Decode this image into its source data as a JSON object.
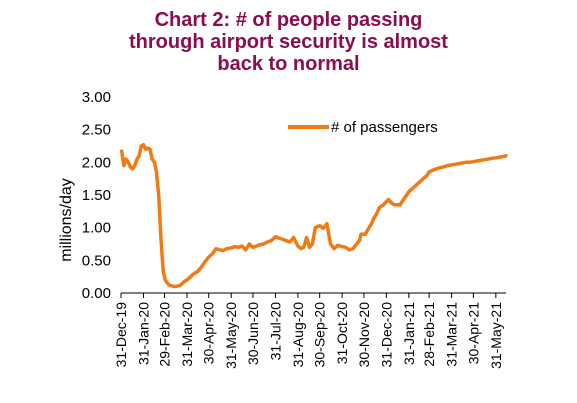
{
  "chart_data": {
    "type": "line",
    "title_lines": [
      "Chart 2: # of people passing",
      "through airport security is almost",
      "back to normal"
    ],
    "title_color": "#8B0D4F",
    "ylabel": "millions/day",
    "xlabel": "",
    "ylim": [
      0,
      3
    ],
    "yticks": [
      "0.00",
      "0.50",
      "1.00",
      "1.50",
      "2.00",
      "2.50",
      "3.00"
    ],
    "ytick_values": [
      0,
      0.5,
      1,
      1.5,
      2,
      2.5,
      3
    ],
    "xlim": [
      "2019-12-31",
      "2021-06-14"
    ],
    "xticks": [
      "31-Dec-19",
      "31-Jan-20",
      "29-Feb-20",
      "31-Mar-20",
      "30-Apr-20",
      "31-May-20",
      "30-Jun-20",
      "31-Jul-20",
      "31-Aug-20",
      "30-Sep-20",
      "31-Oct-20",
      "30-Nov-20",
      "31-Dec-20",
      "31-Jan-21",
      "28-Feb-21",
      "31-Mar-21",
      "30-Apr-21",
      "31-May-21"
    ],
    "xtick_dates": [
      "2019-12-31",
      "2020-01-31",
      "2020-02-29",
      "2020-03-31",
      "2020-04-30",
      "2020-05-31",
      "2020-06-30",
      "2020-07-31",
      "2020-08-31",
      "2020-09-30",
      "2020-10-31",
      "2020-11-30",
      "2020-12-31",
      "2021-01-31",
      "2021-02-28",
      "2021-03-31",
      "2021-04-30",
      "2021-05-31"
    ],
    "grid": false,
    "legend_position": "top-right",
    "series": [
      {
        "name": "# of passengers",
        "color": "#F07A14",
        "x": [
          "2020-01-01",
          "2020-01-04",
          "2020-01-07",
          "2020-01-10",
          "2020-01-13",
          "2020-01-16",
          "2020-01-19",
          "2020-01-22",
          "2020-01-25",
          "2020-01-28",
          "2020-01-31",
          "2020-02-03",
          "2020-02-06",
          "2020-02-09",
          "2020-02-12",
          "2020-02-15",
          "2020-02-18",
          "2020-02-21",
          "2020-02-24",
          "2020-02-27",
          "2020-03-01",
          "2020-03-04",
          "2020-03-07",
          "2020-03-10",
          "2020-03-13",
          "2020-03-16",
          "2020-03-19",
          "2020-03-22",
          "2020-03-25",
          "2020-03-28",
          "2020-03-31",
          "2020-04-05",
          "2020-04-10",
          "2020-04-15",
          "2020-04-20",
          "2020-04-25",
          "2020-04-30",
          "2020-05-05",
          "2020-05-10",
          "2020-05-15",
          "2020-05-20",
          "2020-05-25",
          "2020-05-31",
          "2020-06-05",
          "2020-06-10",
          "2020-06-15",
          "2020-06-20",
          "2020-06-25",
          "2020-06-30",
          "2020-07-05",
          "2020-07-10",
          "2020-07-15",
          "2020-07-20",
          "2020-07-25",
          "2020-07-31",
          "2020-08-05",
          "2020-08-10",
          "2020-08-15",
          "2020-08-20",
          "2020-08-25",
          "2020-08-31",
          "2020-09-04",
          "2020-09-08",
          "2020-09-12",
          "2020-09-16",
          "2020-09-20",
          "2020-09-24",
          "2020-09-30",
          "2020-10-05",
          "2020-10-10",
          "2020-10-15",
          "2020-10-20",
          "2020-10-25",
          "2020-10-31",
          "2020-11-05",
          "2020-11-10",
          "2020-11-15",
          "2020-11-20",
          "2020-11-24",
          "2020-11-26",
          "2020-11-29",
          "2020-12-02",
          "2020-12-06",
          "2020-12-10",
          "2020-12-14",
          "2020-12-18",
          "2020-12-21",
          "2020-12-24",
          "2020-12-27",
          "2020-12-31",
          "2021-01-03",
          "2021-01-07",
          "2021-01-11",
          "2021-01-15",
          "2021-01-19",
          "2021-01-23",
          "2021-01-27",
          "2021-01-31",
          "2021-02-05",
          "2021-02-10",
          "2021-02-15",
          "2021-02-20",
          "2021-02-25",
          "2021-02-28",
          "2021-03-05",
          "2021-03-10",
          "2021-03-15",
          "2021-03-20",
          "2021-03-25",
          "2021-03-31",
          "2021-04-05",
          "2021-04-10",
          "2021-04-15",
          "2021-04-20",
          "2021-04-25",
          "2021-04-30",
          "2021-05-05",
          "2021-05-10",
          "2021-05-15",
          "2021-05-20",
          "2021-05-25",
          "2021-05-31",
          "2021-06-05",
          "2021-06-10",
          "2021-06-14"
        ],
        "values": [
          2.17,
          1.95,
          2.05,
          2.0,
          1.93,
          1.9,
          1.95,
          2.05,
          2.1,
          2.25,
          2.27,
          2.2,
          2.22,
          2.2,
          2.05,
          2.0,
          1.85,
          1.5,
          0.85,
          0.35,
          0.2,
          0.15,
          0.12,
          0.11,
          0.1,
          0.1,
          0.11,
          0.12,
          0.15,
          0.18,
          0.2,
          0.25,
          0.3,
          0.33,
          0.4,
          0.48,
          0.55,
          0.6,
          0.68,
          0.66,
          0.65,
          0.68,
          0.69,
          0.71,
          0.7,
          0.72,
          0.66,
          0.75,
          0.7,
          0.72,
          0.74,
          0.75,
          0.78,
          0.8,
          0.86,
          0.84,
          0.82,
          0.8,
          0.78,
          0.85,
          0.72,
          0.68,
          0.7,
          0.85,
          0.7,
          0.75,
          1.0,
          1.03,
          0.99,
          1.06,
          0.75,
          0.68,
          0.73,
          0.71,
          0.7,
          0.66,
          0.68,
          0.75,
          0.8,
          0.9,
          0.9,
          0.9,
          0.98,
          1.05,
          1.15,
          1.22,
          1.3,
          1.33,
          1.35,
          1.4,
          1.43,
          1.38,
          1.35,
          1.35,
          1.35,
          1.42,
          1.48,
          1.55,
          1.6,
          1.65,
          1.7,
          1.75,
          1.8,
          1.85,
          1.88,
          1.9,
          1.92,
          1.93,
          1.95,
          1.96,
          1.97,
          1.98,
          1.99,
          2.0,
          2.0,
          2.01,
          2.02,
          2.03,
          2.04,
          2.05,
          2.06,
          2.07,
          2.08,
          2.09,
          2.1
        ]
      }
    ]
  }
}
